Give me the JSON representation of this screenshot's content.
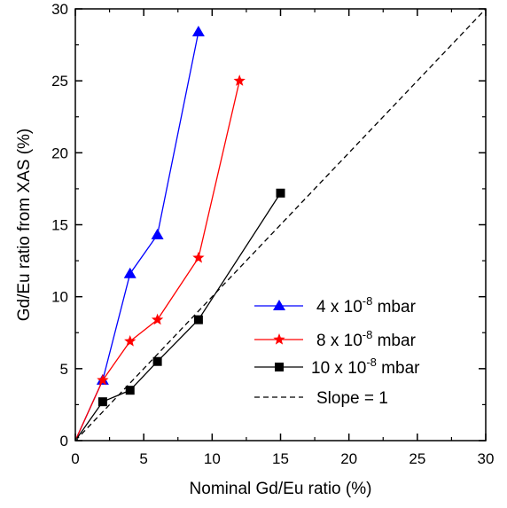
{
  "chart_data": {
    "type": "line",
    "xlabel": "Nominal Gd/Eu ratio (%)",
    "ylabel": "Gd/Eu ratio from XAS (%)",
    "xlim": [
      0,
      30
    ],
    "ylim": [
      0,
      30
    ],
    "x_ticks": [
      0,
      5,
      10,
      15,
      20,
      25,
      30
    ],
    "y_ticks": [
      0,
      5,
      10,
      15,
      20,
      25,
      30
    ],
    "grid": false,
    "legend_position": "bottom-right",
    "series": [
      {
        "name": "4 x 10^-8 mbar",
        "legend_text": {
          "base": "4 x 10",
          "exp": "-8",
          "unit": " mbar"
        },
        "marker": "triangle",
        "line_style": "solid",
        "color": "#0000ff",
        "points": [
          [
            0,
            0
          ],
          [
            2,
            4.2
          ],
          [
            4,
            11.6
          ],
          [
            6,
            14.3
          ],
          [
            9,
            28.4
          ]
        ]
      },
      {
        "name": "8 x 10^-8 mbar",
        "legend_text": {
          "base": "8 x 10",
          "exp": "-8",
          "unit": " mbar"
        },
        "marker": "star",
        "line_style": "solid",
        "color": "#ff0000",
        "points": [
          [
            0,
            0
          ],
          [
            2,
            4.2
          ],
          [
            4,
            6.9
          ],
          [
            6,
            8.4
          ],
          [
            9,
            12.7
          ],
          [
            12,
            25
          ]
        ]
      },
      {
        "name": "10 x 10^-8 mbar",
        "legend_text": {
          "base": "10 x 10",
          "exp": "-8",
          "unit": " mbar"
        },
        "marker": "square",
        "line_style": "solid",
        "color": "#000000",
        "points": [
          [
            0,
            0
          ],
          [
            2,
            2.7
          ],
          [
            4,
            3.5
          ],
          [
            6,
            5.5
          ],
          [
            9,
            8.4
          ],
          [
            15,
            17.2
          ]
        ]
      },
      {
        "name": "Slope = 1",
        "legend_text": {
          "base": "Slope = 1",
          "exp": "",
          "unit": ""
        },
        "marker": "none",
        "line_style": "dashed",
        "color": "#000000",
        "points": [
          [
            0,
            0
          ],
          [
            30,
            30
          ]
        ]
      }
    ]
  }
}
